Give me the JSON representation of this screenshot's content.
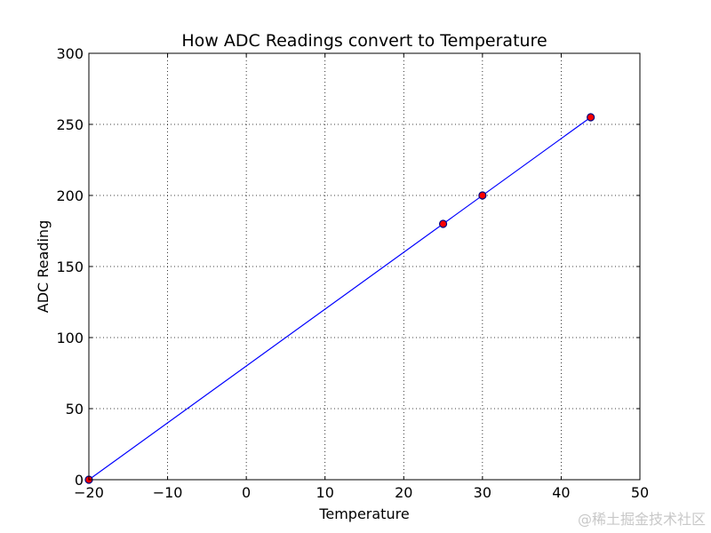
{
  "chart_data": {
    "type": "line",
    "title": "How ADC Readings convert to Temperature",
    "xlabel": "Temperature",
    "ylabel": "ADC Reading",
    "xlim": [
      -20,
      50
    ],
    "ylim": [
      0,
      300
    ],
    "x_ticks": [
      -20,
      -10,
      0,
      10,
      20,
      30,
      40,
      50
    ],
    "x_tick_labels": [
      "−20",
      "−10",
      "0",
      "10",
      "20",
      "30",
      "40",
      "50"
    ],
    "y_ticks": [
      0,
      50,
      100,
      150,
      200,
      250,
      300
    ],
    "y_tick_labels": [
      "0",
      "50",
      "100",
      "150",
      "200",
      "250",
      "300"
    ],
    "grid": true,
    "series": [
      {
        "name": "linear fit",
        "kind": "line",
        "color": "#0000ff",
        "x": [
          -20,
          43.75
        ],
        "y": [
          0,
          255
        ]
      },
      {
        "name": "data points",
        "kind": "scatter",
        "color": "#ff0000",
        "edge_color": "#000080",
        "x": [
          -20,
          25,
          30,
          43.75
        ],
        "y": [
          0,
          180,
          200,
          255
        ]
      }
    ]
  },
  "watermark": "@稀土掘金技术社区"
}
